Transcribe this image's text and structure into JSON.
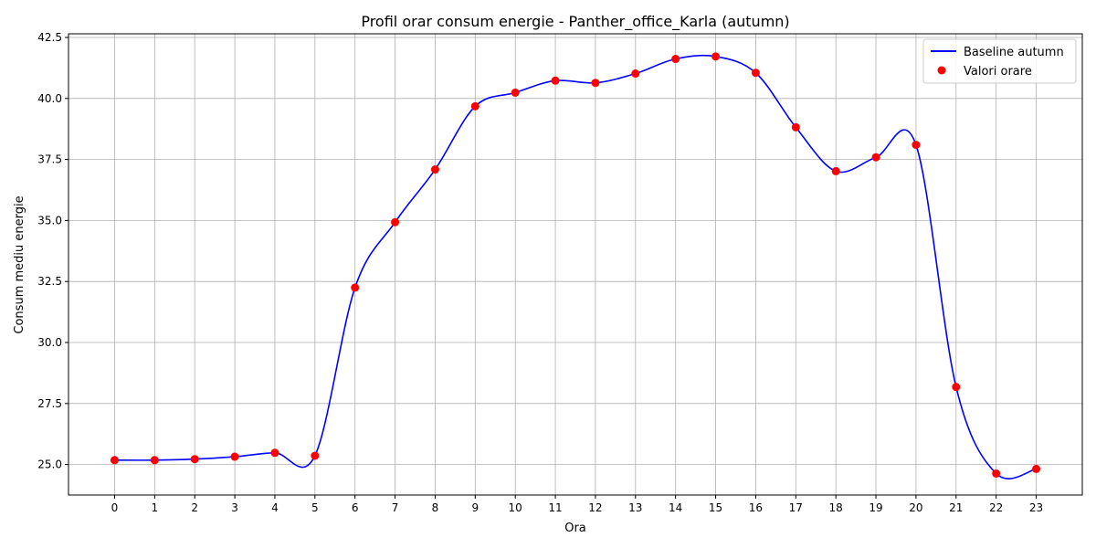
{
  "chart_data": {
    "type": "line",
    "title": "Profil orar consum energie - Panther_office_Karla (autumn)",
    "xlabel": "Ora",
    "ylabel": "Consum mediu energie",
    "x": [
      0,
      1,
      2,
      3,
      4,
      5,
      6,
      7,
      8,
      9,
      10,
      11,
      12,
      13,
      14,
      15,
      16,
      17,
      18,
      19,
      20,
      21,
      22,
      23
    ],
    "x_tick_labels": [
      "0",
      "1",
      "2",
      "3",
      "4",
      "5",
      "6",
      "7",
      "8",
      "9",
      "10",
      "11",
      "12",
      "13",
      "14",
      "15",
      "16",
      "17",
      "18",
      "19",
      "20",
      "21",
      "22",
      "23"
    ],
    "y_ticks": [
      25.0,
      27.5,
      30.0,
      32.5,
      35.0,
      37.5,
      40.0,
      42.5
    ],
    "y_tick_labels": [
      "25.0",
      "27.5",
      "30.0",
      "32.5",
      "35.0",
      "37.5",
      "40.0",
      "42.5"
    ],
    "xlim": [
      -1.15,
      24.15
    ],
    "ylim": [
      23.75,
      42.65
    ],
    "grid": true,
    "legend_position": "top-right",
    "series": [
      {
        "name": "Baseline autumn",
        "kind": "smooth-line",
        "color": "#0000ff",
        "values": [
          25.18,
          25.18,
          25.22,
          25.32,
          25.48,
          25.36,
          32.25,
          34.93,
          37.09,
          39.68,
          40.24,
          40.73,
          40.64,
          41.02,
          41.62,
          41.72,
          41.05,
          38.82,
          37.02,
          37.59,
          38.1,
          28.18,
          24.63,
          24.82
        ]
      },
      {
        "name": "Valori orare",
        "kind": "scatter",
        "color": "#ff0000",
        "values": [
          25.18,
          25.18,
          25.22,
          25.32,
          25.48,
          25.36,
          32.25,
          34.93,
          37.09,
          39.68,
          40.24,
          40.73,
          40.64,
          41.02,
          41.62,
          41.72,
          41.05,
          38.82,
          37.02,
          37.59,
          38.1,
          28.18,
          24.63,
          24.82
        ]
      }
    ]
  }
}
